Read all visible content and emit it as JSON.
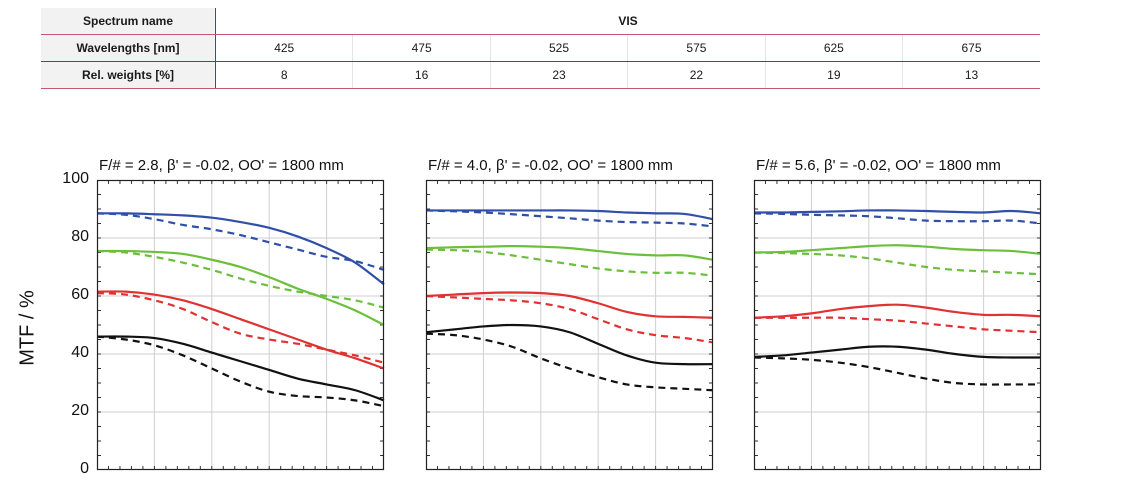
{
  "table": {
    "rows": [
      {
        "label": "Spectrum name",
        "values": [
          "VIS"
        ]
      },
      {
        "label": "Wavelengths [nm]",
        "values": [
          "425",
          "475",
          "525",
          "575",
          "625",
          "675"
        ]
      },
      {
        "label": "Rel. weights [%]",
        "values": [
          "8",
          "16",
          "23",
          "22",
          "19",
          "13"
        ]
      }
    ]
  },
  "colors": {
    "blue": "#2f4fa8",
    "green": "#6bbf3c",
    "red": "#e03232",
    "black": "#111111"
  },
  "chart_data": [
    {
      "type": "line",
      "title": "F/# = 2.8, β' = -0.02, OO' = 1800 mm",
      "ylabel": "MTF / %",
      "ylim": [
        0,
        100
      ],
      "yticks": [
        0,
        20,
        40,
        60,
        80,
        100
      ],
      "grid": true,
      "x": [
        0,
        0.1,
        0.2,
        0.3,
        0.4,
        0.5,
        0.6,
        0.7,
        0.8,
        0.9,
        1.0
      ],
      "series": [
        {
          "color": "blue",
          "style": "solid",
          "values": [
            88.5,
            88.5,
            88.2,
            87.8,
            87.0,
            85.5,
            83.5,
            80.5,
            76.5,
            71.5,
            64
          ]
        },
        {
          "color": "blue",
          "style": "dashed",
          "values": [
            88.5,
            88.0,
            86.5,
            84.5,
            83.0,
            81.0,
            78.5,
            76.0,
            73.5,
            72.0,
            69
          ]
        },
        {
          "color": "green",
          "style": "solid",
          "values": [
            75.5,
            75.5,
            75.2,
            74.5,
            72.5,
            70.0,
            66.5,
            62.5,
            59.0,
            55.0,
            50
          ]
        },
        {
          "color": "green",
          "style": "dashed",
          "values": [
            75.5,
            75.0,
            73.5,
            71.5,
            69.0,
            66.0,
            63.5,
            61.5,
            60.0,
            58.5,
            56
          ]
        },
        {
          "color": "red",
          "style": "solid",
          "values": [
            61.5,
            61.5,
            60.5,
            58.5,
            55.5,
            52.0,
            48.5,
            45.0,
            41.5,
            38.5,
            35
          ]
        },
        {
          "color": "red",
          "style": "dashed",
          "values": [
            61.0,
            60.5,
            58.5,
            55.5,
            51.0,
            47.0,
            45.0,
            43.5,
            41.5,
            39.5,
            37
          ]
        },
        {
          "color": "black",
          "style": "solid",
          "values": [
            46.0,
            46.0,
            45.5,
            43.5,
            40.5,
            37.5,
            34.5,
            31.5,
            29.5,
            27.5,
            24
          ]
        },
        {
          "color": "black",
          "style": "dashed",
          "values": [
            46.0,
            45.0,
            43.0,
            39.5,
            35.0,
            30.5,
            27.0,
            25.5,
            25.0,
            24.0,
            22
          ]
        }
      ]
    },
    {
      "type": "line",
      "title": "F/# = 4.0, β' = -0.02, OO' = 1800 mm",
      "ylim": [
        0,
        100
      ],
      "yticks": [
        0,
        20,
        40,
        60,
        80,
        100
      ],
      "grid": true,
      "x": [
        0,
        0.1,
        0.2,
        0.3,
        0.4,
        0.5,
        0.6,
        0.7,
        0.8,
        0.9,
        1.0
      ],
      "series": [
        {
          "color": "blue",
          "style": "solid",
          "values": [
            89.5,
            89.5,
            89.5,
            89.5,
            89.5,
            89.5,
            89.3,
            88.8,
            88.5,
            88.3,
            86.5
          ]
        },
        {
          "color": "blue",
          "style": "dashed",
          "values": [
            89.5,
            89.2,
            88.8,
            88.2,
            87.5,
            86.8,
            86.0,
            85.5,
            85.3,
            85.0,
            84
          ]
        },
        {
          "color": "green",
          "style": "solid",
          "values": [
            76.5,
            76.8,
            77.0,
            77.2,
            77.0,
            76.5,
            75.5,
            74.5,
            74.0,
            74.0,
            72.5
          ]
        },
        {
          "color": "green",
          "style": "dashed",
          "values": [
            76.0,
            75.8,
            75.2,
            74.0,
            72.5,
            71.0,
            69.5,
            68.5,
            68.0,
            68.0,
            67
          ]
        },
        {
          "color": "red",
          "style": "solid",
          "values": [
            60.0,
            60.5,
            61.0,
            61.2,
            61.0,
            60.0,
            57.5,
            54.5,
            53.0,
            52.8,
            52.5
          ]
        },
        {
          "color": "red",
          "style": "dashed",
          "values": [
            60.0,
            59.5,
            59.0,
            58.5,
            57.5,
            55.5,
            52.0,
            48.5,
            46.5,
            45.5,
            44
          ]
        },
        {
          "color": "black",
          "style": "solid",
          "values": [
            47.5,
            48.5,
            49.5,
            50.0,
            49.5,
            47.5,
            43.5,
            39.5,
            37.0,
            36.5,
            36.5
          ]
        },
        {
          "color": "black",
          "style": "dashed",
          "values": [
            47.0,
            46.5,
            45.0,
            42.5,
            38.5,
            35.0,
            32.0,
            29.5,
            28.5,
            28.0,
            27.5
          ]
        }
      ]
    },
    {
      "type": "line",
      "title": "F/# = 5.6, β' = -0.02, OO' = 1800 mm",
      "ylim": [
        0,
        100
      ],
      "yticks": [
        0,
        20,
        40,
        60,
        80,
        100
      ],
      "grid": true,
      "x": [
        0,
        0.1,
        0.2,
        0.3,
        0.4,
        0.5,
        0.6,
        0.7,
        0.8,
        0.9,
        1.0
      ],
      "series": [
        {
          "color": "blue",
          "style": "solid",
          "values": [
            88.8,
            88.8,
            89.0,
            89.2,
            89.5,
            89.5,
            89.3,
            89.0,
            88.8,
            89.3,
            88.5
          ]
        },
        {
          "color": "blue",
          "style": "dashed",
          "values": [
            88.5,
            88.3,
            88.0,
            87.8,
            87.5,
            86.8,
            86.0,
            85.8,
            85.8,
            86.0,
            85
          ]
        },
        {
          "color": "green",
          "style": "solid",
          "values": [
            75.0,
            75.2,
            75.8,
            76.5,
            77.2,
            77.5,
            77.0,
            76.2,
            75.8,
            75.5,
            74.5
          ]
        },
        {
          "color": "green",
          "style": "dashed",
          "values": [
            75.0,
            74.8,
            74.5,
            74.0,
            73.0,
            71.5,
            70.0,
            69.0,
            68.5,
            68.0,
            67.5
          ]
        },
        {
          "color": "red",
          "style": "solid",
          "values": [
            52.5,
            53.0,
            54.0,
            55.5,
            56.5,
            57.0,
            56.0,
            54.5,
            53.5,
            53.5,
            53
          ]
        },
        {
          "color": "red",
          "style": "dashed",
          "values": [
            52.5,
            52.5,
            52.5,
            52.5,
            52.0,
            51.5,
            50.5,
            49.5,
            48.5,
            48.0,
            47.5
          ]
        },
        {
          "color": "black",
          "style": "solid",
          "values": [
            39.0,
            39.5,
            40.5,
            41.5,
            42.5,
            42.5,
            41.5,
            40.0,
            39.0,
            38.8,
            38.8
          ]
        },
        {
          "color": "black",
          "style": "dashed",
          "values": [
            38.8,
            38.5,
            38.0,
            37.0,
            35.5,
            33.5,
            31.5,
            30.0,
            29.5,
            29.5,
            29.5
          ]
        }
      ]
    }
  ]
}
